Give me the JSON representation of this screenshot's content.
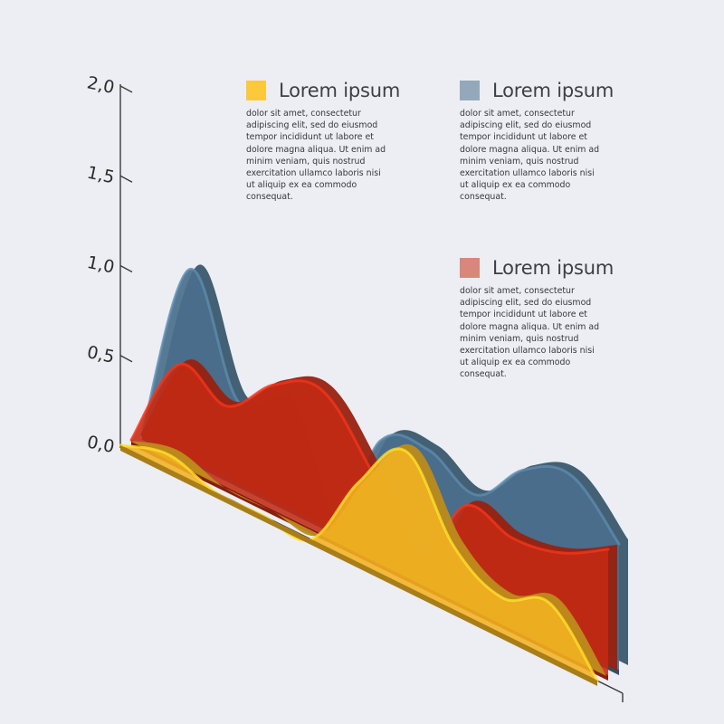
{
  "chart_data": {
    "type": "area",
    "y_ticks": [
      "0,0",
      "0,5",
      "1,0",
      "1,5",
      "2,0"
    ],
    "y_tick_values": [
      0,
      0.5,
      1.0,
      1.5,
      2.0
    ],
    "ylim": [
      0,
      2.0
    ],
    "x": [
      0,
      1,
      2,
      3,
      4,
      5,
      6,
      7,
      8,
      9,
      10
    ],
    "series": [
      {
        "color": "#4a6f8c",
        "values": [
          0.0,
          1.05,
          0.45,
          0.55,
          0.0,
          0.62,
          0.7,
          0.58,
          0.85,
          0.95,
          0.7
        ]
      },
      {
        "color": "#c42a14",
        "values": [
          0.0,
          0.55,
          0.45,
          0.7,
          0.8,
          0.5,
          0.1,
          0.55,
          0.5,
          0.55,
          0.7
        ]
      },
      {
        "color": "#f2b322",
        "values": [
          0.0,
          0.08,
          0.0,
          0.0,
          0.0,
          0.45,
          0.75,
          0.35,
          0.2,
          0.3,
          0.0
        ]
      }
    ],
    "legend": [
      {
        "title": "Lorem ipsum",
        "color": "#fcc93d",
        "text": "dolor sit amet, consectetur adipiscing elit, sed do eiusmod tempor incididunt ut labore et dolore magna aliqua. Ut enim ad minim veniam, quis nostrud exercitation ullamco laboris nisi ut aliquip ex ea commodo consequat."
      },
      {
        "title": "Lorem ipsum",
        "color": "#93a9bb",
        "text": "dolor sit amet, consectetur adipiscing elit, sed do eiusmod tempor incididunt ut labore et dolore magna aliqua. Ut enim ad minim veniam, quis nostrud exercitation ullamco laboris nisi ut aliquip ex ea commodo consequat."
      },
      {
        "title": "Lorem ipsum",
        "color": "#d8877a",
        "text": "dolor sit amet, consectetur adipiscing elit, sed do eiusmod tempor incididunt ut labore et dolore magna aliqua. Ut enim ad minim veniam, quis nostrud exercitation ullamco laboris nisi ut aliquip ex ea commodo consequat."
      }
    ]
  }
}
